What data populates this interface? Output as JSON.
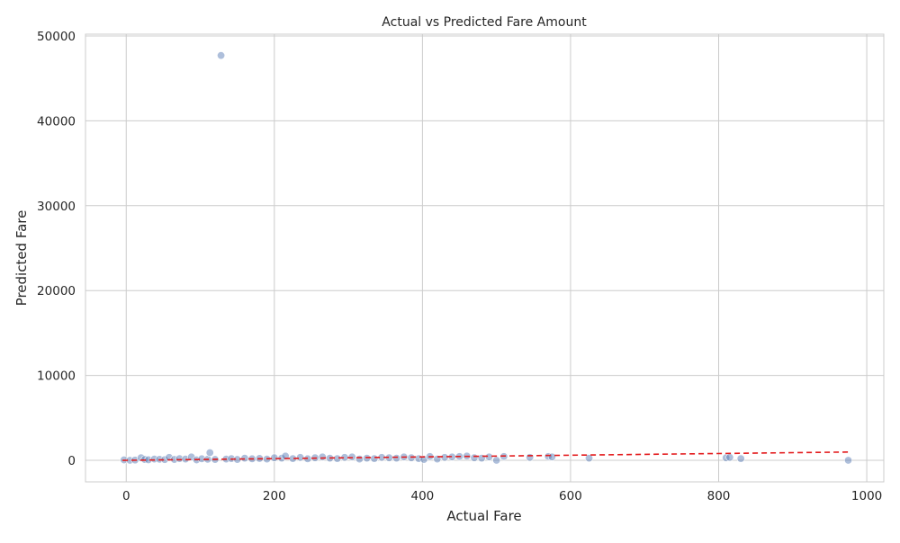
{
  "chart_data": {
    "type": "scatter",
    "title": "Actual vs Predicted Fare Amount",
    "x_label": "Actual Fare",
    "y_label": "Predicted Fare",
    "color": "#4c72b0",
    "grid": true,
    "xlim": [
      -55,
      1023
    ],
    "ylim": [
      -2540,
      50210
    ],
    "xticks": [
      0,
      200,
      400,
      600,
      800,
      1000
    ],
    "yticks": [
      0,
      10000,
      20000,
      30000,
      40000,
      50000
    ],
    "x": [
      -3,
      5,
      12,
      20,
      25,
      30,
      38,
      45,
      52,
      58,
      65,
      72,
      80,
      88,
      95,
      102,
      110,
      113,
      120,
      128,
      135,
      142,
      150,
      160,
      170,
      180,
      190,
      200,
      210,
      215,
      225,
      235,
      245,
      255,
      265,
      275,
      285,
      295,
      305,
      315,
      325,
      335,
      345,
      355,
      365,
      375,
      385,
      395,
      402,
      410,
      420,
      430,
      440,
      450,
      460,
      470,
      480,
      490,
      500,
      510,
      545,
      570,
      575,
      625,
      810,
      815,
      830,
      975
    ],
    "y": [
      50,
      0,
      30,
      300,
      100,
      60,
      150,
      120,
      80,
      350,
      100,
      200,
      150,
      400,
      50,
      180,
      120,
      900,
      100,
      47700,
      150,
      200,
      100,
      250,
      180,
      220,
      150,
      300,
      250,
      500,
      200,
      350,
      180,
      300,
      400,
      250,
      200,
      350,
      400,
      150,
      250,
      200,
      350,
      300,
      250,
      400,
      300,
      200,
      100,
      450,
      150,
      350,
      400,
      450,
      500,
      300,
      250,
      400,
      0,
      450,
      350,
      450,
      400,
      250,
      300,
      350,
      200,
      0
    ],
    "line": {
      "color": "#e31a1c",
      "x": [
        -5,
        975
      ],
      "y": [
        -5,
        975
      ]
    }
  }
}
